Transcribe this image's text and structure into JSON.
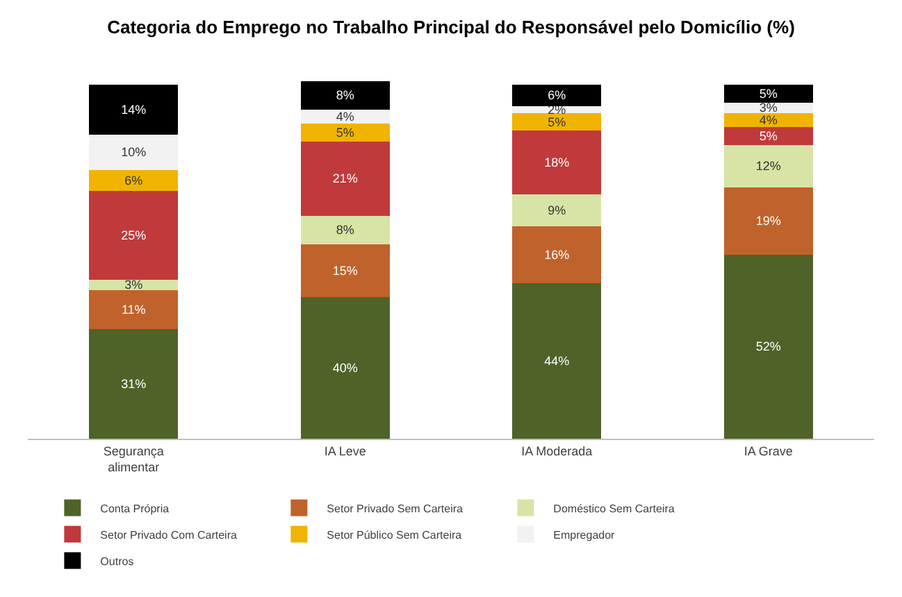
{
  "chart_data": {
    "type": "bar",
    "stacked": true,
    "title": "Categoria do Emprego no Trabalho Principal do Responsável pelo Domicílio (%)",
    "categories": [
      "Segurança alimentar",
      "IA Leve",
      "IA Moderada",
      "IA Grave"
    ],
    "series": [
      {
        "name": "Conta Própria",
        "color": "#4f6228",
        "values": [
          31,
          40,
          44,
          52
        ],
        "value_labels": [
          "31%",
          "40%",
          "44%",
          "52%"
        ]
      },
      {
        "name": "Setor Privado Sem Carteira",
        "color": "#c0622b",
        "values": [
          11,
          15,
          16,
          19
        ],
        "value_labels": [
          "11%",
          "15%",
          "16%",
          "19%"
        ]
      },
      {
        "name": "Doméstico Sem Carteira",
        "color": "#d7e4a5",
        "values": [
          3,
          8,
          9,
          12
        ],
        "value_labels": [
          "3%",
          "8%",
          "9%",
          "12%"
        ]
      },
      {
        "name": "Setor Privado Com Carteira",
        "color": "#c0393b",
        "values": [
          25,
          21,
          18,
          5
        ],
        "value_labels": [
          "25%",
          "21%",
          "18%",
          "5%"
        ]
      },
      {
        "name": "Setor Público Sem Carteira",
        "color": "#f0b400",
        "values": [
          6,
          5,
          5,
          4
        ],
        "value_labels": [
          "6%",
          "5%",
          "5%",
          "4%"
        ]
      },
      {
        "name": "Empregador",
        "color": "#f2f2f2",
        "values": [
          10,
          4,
          2,
          3
        ],
        "value_labels": [
          "10%",
          "4%",
          "2%",
          "3%"
        ]
      },
      {
        "name": "Outros",
        "color": "#000000",
        "values": [
          14,
          8,
          6,
          5
        ],
        "value_labels": [
          "14%",
          "8%",
          "6%",
          "5%"
        ]
      }
    ],
    "tick_labels": "x",
    "legend": "bottom"
  }
}
